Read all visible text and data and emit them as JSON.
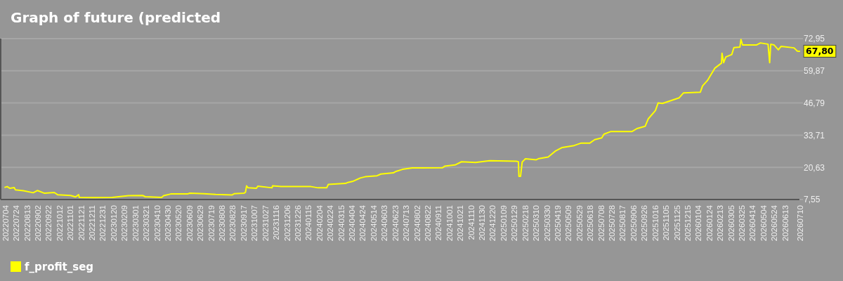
{
  "chart_data": {
    "type": "line",
    "title": "Graph of future (predicted",
    "x": [
      "2022-07-04",
      "2022-07-08",
      "2022-07-13",
      "2022-07-21",
      "2022-07-23",
      "2022-08-07",
      "2022-08-25",
      "2022-09-02",
      "2022-09-15",
      "2022-10-03",
      "2022-10-09",
      "2022-11-02",
      "2022-11-11",
      "2022-11-17",
      "2022-11-18",
      "2022-12-14",
      "2023-01-18",
      "2023-02-17",
      "2023-03-15",
      "2023-03-20",
      "2023-04-19",
      "2023-04-23",
      "2023-05-06",
      "2023-06-06",
      "2023-06-10",
      "2023-07-06",
      "2023-07-28",
      "2023-08-27",
      "2023-08-31",
      "2023-09-18",
      "2023-09-21",
      "2023-09-23",
      "2023-09-26",
      "2023-10-11",
      "2023-10-14",
      "2023-11-09",
      "2023-11-10",
      "2023-11-26",
      "2024-01-20",
      "2024-02-02",
      "2024-02-18",
      "2024-02-21",
      "2024-03-24",
      "2024-03-28",
      "2024-04-07",
      "2024-04-20",
      "2024-04-29",
      "2024-05-21",
      "2024-05-28",
      "2024-06-20",
      "2024-06-24",
      "2024-07-07",
      "2024-07-25",
      "2024-08-11",
      "2024-09-19",
      "2024-09-23",
      "2024-10-12",
      "2024-10-24",
      "2024-11-19",
      "2024-12-15",
      "2025-02-02",
      "2025-02-06",
      "2025-02-07",
      "2025-02-10",
      "2025-02-13",
      "2025-02-19",
      "2025-03-11",
      "2025-03-16",
      "2025-04-02",
      "2025-04-15",
      "2025-04-28",
      "2025-05-20",
      "2025-06-02",
      "2025-06-18",
      "2025-06-27",
      "2025-07-10",
      "2025-07-14",
      "2025-07-27",
      "2025-09-04",
      "2025-09-13",
      "2025-09-28",
      "2025-10-04",
      "2025-10-17",
      "2025-10-22",
      "2025-10-30",
      "2025-11-30",
      "2025-12-08",
      "2026-01-08",
      "2026-01-12",
      "2026-01-21",
      "2026-02-04",
      "2026-02-16",
      "2026-02-17",
      "2026-02-20",
      "2026-02-24",
      "2026-03-07",
      "2026-03-11",
      "2026-03-22",
      "2026-03-24",
      "2026-03-27",
      "2026-04-22",
      "2026-04-29",
      "2026-05-13",
      "2026-05-16",
      "2026-05-18",
      "2026-05-24",
      "2026-06-01",
      "2026-06-06",
      "2026-06-30",
      "2026-07-06",
      "2026-07-10"
    ],
    "series": [
      {
        "name": "f_profit_seg",
        "color": "#ffff00",
        "values": [
          12.5,
          12.8,
          12.1,
          12.4,
          11.5,
          11.1,
          10.3,
          11.2,
          10.1,
          10.4,
          9.5,
          9.2,
          8.6,
          9.5,
          8.4,
          8.3,
          8.4,
          9.1,
          9.2,
          8.7,
          8.4,
          9.1,
          9.8,
          9.8,
          10.1,
          9.9,
          9.6,
          9.4,
          9.9,
          10.1,
          10.5,
          13.1,
          12.3,
          12.1,
          13.0,
          12.3,
          13.1,
          12.8,
          12.8,
          12.3,
          12.3,
          13.7,
          14.1,
          14.5,
          15.0,
          16.3,
          16.8,
          17.2,
          17.9,
          18.4,
          18.9,
          19.8,
          20.4,
          20.4,
          20.5,
          21.1,
          21.6,
          22.9,
          22.6,
          23.3,
          23.1,
          22.9,
          17.0,
          17.0,
          22.8,
          24.1,
          23.7,
          24.2,
          24.8,
          27.2,
          28.7,
          29.5,
          30.5,
          30.5,
          31.9,
          32.6,
          34.1,
          35.2,
          35.2,
          36.4,
          37.3,
          40.4,
          43.7,
          46.8,
          46.6,
          48.9,
          50.9,
          51.2,
          53.7,
          55.9,
          61.0,
          63.0,
          67.0,
          63.2,
          65.5,
          66.5,
          69.3,
          69.5,
          72.6,
          70.4,
          70.4,
          71.2,
          70.7,
          63.2,
          70.7,
          70.4,
          68.4,
          69.8,
          69.2,
          67.9,
          67.8
        ]
      }
    ],
    "xlim": [
      "2022-06-26",
      "2026-07-10"
    ],
    "xticks": [
      {
        "value": "2022-07-04",
        "label": "20220704"
      },
      {
        "value": "2022-07-24",
        "label": "20220724"
      },
      {
        "value": "2022-08-13",
        "label": "20220813"
      },
      {
        "value": "2022-09-02",
        "label": "20220902"
      },
      {
        "value": "2022-09-22",
        "label": "20220922"
      },
      {
        "value": "2022-10-12",
        "label": "20221012"
      },
      {
        "value": "2022-11-01",
        "label": "20221101"
      },
      {
        "value": "2022-11-21",
        "label": "20221121"
      },
      {
        "value": "2022-12-11",
        "label": "20221211"
      },
      {
        "value": "2022-12-31",
        "label": "20221231"
      },
      {
        "value": "2023-01-20",
        "label": "20230120"
      },
      {
        "value": "2023-02-09",
        "label": "20230209"
      },
      {
        "value": "2023-03-01",
        "label": "20230301"
      },
      {
        "value": "2023-03-21",
        "label": "20230321"
      },
      {
        "value": "2023-04-10",
        "label": "20230410"
      },
      {
        "value": "2023-04-30",
        "label": "20230430"
      },
      {
        "value": "2023-05-20",
        "label": "20230520"
      },
      {
        "value": "2023-06-09",
        "label": "20230609"
      },
      {
        "value": "2023-06-29",
        "label": "20230629"
      },
      {
        "value": "2023-07-19",
        "label": "20230719"
      },
      {
        "value": "2023-08-08",
        "label": "20230808"
      },
      {
        "value": "2023-08-28",
        "label": "20230828"
      },
      {
        "value": "2023-09-17",
        "label": "20230917"
      },
      {
        "value": "2023-10-07",
        "label": "20231007"
      },
      {
        "value": "2023-10-27",
        "label": "20231027"
      },
      {
        "value": "2023-11-16",
        "label": "20231116"
      },
      {
        "value": "2023-12-06",
        "label": "20231206"
      },
      {
        "value": "2023-12-26",
        "label": "20231226"
      },
      {
        "value": "2024-01-15",
        "label": "20240115"
      },
      {
        "value": "2024-02-04",
        "label": "20240204"
      },
      {
        "value": "2024-02-24",
        "label": "20240224"
      },
      {
        "value": "2024-03-15",
        "label": "20240315"
      },
      {
        "value": "2024-04-04",
        "label": "20240404"
      },
      {
        "value": "2024-04-24",
        "label": "20240424"
      },
      {
        "value": "2024-05-14",
        "label": "20240514"
      },
      {
        "value": "2024-06-03",
        "label": "20240603"
      },
      {
        "value": "2024-06-23",
        "label": "20240623"
      },
      {
        "value": "2024-07-13",
        "label": "20240713"
      },
      {
        "value": "2024-08-02",
        "label": "20240802"
      },
      {
        "value": "2024-08-22",
        "label": "20240822"
      },
      {
        "value": "2024-09-11",
        "label": "20240911"
      },
      {
        "value": "2024-10-01",
        "label": "20241001"
      },
      {
        "value": "2024-10-21",
        "label": "20241021"
      },
      {
        "value": "2024-11-10",
        "label": "20241110"
      },
      {
        "value": "2024-11-30",
        "label": "20241130"
      },
      {
        "value": "2024-12-20",
        "label": "20241220"
      },
      {
        "value": "2025-01-09",
        "label": "20250109"
      },
      {
        "value": "2025-01-29",
        "label": "20250129"
      },
      {
        "value": "2025-02-18",
        "label": "20250218"
      },
      {
        "value": "2025-03-10",
        "label": "20250310"
      },
      {
        "value": "2025-03-30",
        "label": "20250330"
      },
      {
        "value": "2025-04-19",
        "label": "20250419"
      },
      {
        "value": "2025-05-09",
        "label": "20250509"
      },
      {
        "value": "2025-05-29",
        "label": "20250529"
      },
      {
        "value": "2025-06-18",
        "label": "20250618"
      },
      {
        "value": "2025-07-08",
        "label": "20250708"
      },
      {
        "value": "2025-07-28",
        "label": "20250728"
      },
      {
        "value": "2025-08-17",
        "label": "20250817"
      },
      {
        "value": "2025-09-06",
        "label": "20250906"
      },
      {
        "value": "2025-09-26",
        "label": "20250926"
      },
      {
        "value": "2025-10-16",
        "label": "20251016"
      },
      {
        "value": "2025-11-05",
        "label": "20251105"
      },
      {
        "value": "2025-11-25",
        "label": "20251125"
      },
      {
        "value": "2025-12-15",
        "label": "20251215"
      },
      {
        "value": "2026-01-04",
        "label": "20260104"
      },
      {
        "value": "2026-01-24",
        "label": "20260124"
      },
      {
        "value": "2026-02-13",
        "label": "20260213"
      },
      {
        "value": "2026-03-05",
        "label": "20260305"
      },
      {
        "value": "2026-03-25",
        "label": "20260325"
      },
      {
        "value": "2026-04-14",
        "label": "20260414"
      },
      {
        "value": "2026-05-04",
        "label": "20260504"
      },
      {
        "value": "2026-05-24",
        "label": "20260524"
      },
      {
        "value": "2026-06-13",
        "label": "20260613"
      },
      {
        "value": "2026-07-10",
        "label": "20260710"
      }
    ],
    "ylim": [
      7.55,
      72.95
    ],
    "yticks": [
      {
        "value": 7.55,
        "label": "7,55"
      },
      {
        "value": 20.63,
        "label": "20,63"
      },
      {
        "value": 33.71,
        "label": "33,71"
      },
      {
        "value": 46.79,
        "label": "46,79"
      },
      {
        "value": 59.87,
        "label": "59,87"
      },
      {
        "value": 72.95,
        "label": "72,95"
      }
    ],
    "grid": "y",
    "legend": "bottom left",
    "annotations": [
      {
        "text": "67,80",
        "x": "2026-07-10",
        "y": 67.8
      }
    ]
  }
}
